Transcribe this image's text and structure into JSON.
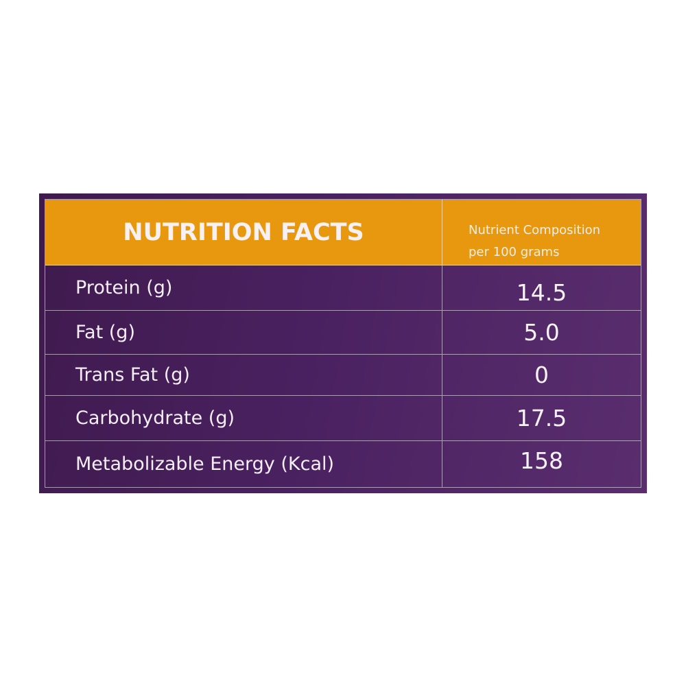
{
  "panel": {
    "title": "NUTRITION FACTS",
    "subtitle_line1": "Nutrient Composition",
    "subtitle_line2": "per 100 grams"
  },
  "rows": [
    {
      "name": "Protein (g)",
      "value": "14.5"
    },
    {
      "name": "Fat (g)",
      "value": "5.0"
    },
    {
      "name": "Trans Fat (g)",
      "value": "0"
    },
    {
      "name": "Carbohydrate (g)",
      "value": "17.5"
    },
    {
      "name": "Metabolizable Energy (Kcal)",
      "value": "158"
    }
  ],
  "colors": {
    "header": "#e8980f",
    "panel": "#4a2160",
    "text": "#f4eef5"
  }
}
